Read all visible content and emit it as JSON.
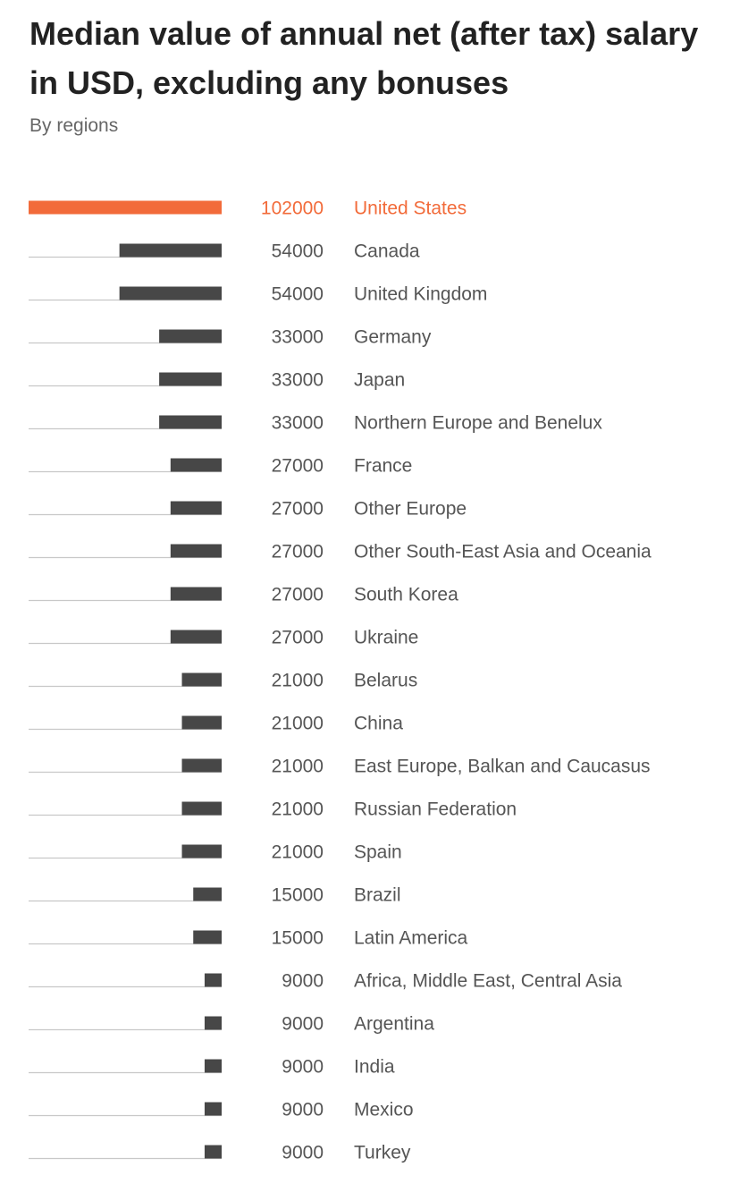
{
  "chart_data": {
    "type": "bar",
    "orientation": "horizontal",
    "title": "Median value of annual net (after tax) salary in USD, excluding any bonuses",
    "subtitle": "By regions",
    "categories": [
      "United States",
      "Canada",
      "United Kingdom",
      "Germany",
      "Japan",
      "Northern Europe and Benelux",
      "France",
      "Other Europe",
      "Other South-East Asia and Oceania",
      "South Korea",
      "Ukraine",
      "Belarus",
      "China",
      "East Europe, Balkan and Caucasus",
      "Russian Federation",
      "Spain",
      "Brazil",
      "Latin America",
      "Africa, Middle East, Central Asia",
      "Argentina",
      "India",
      "Mexico",
      "Turkey"
    ],
    "values": [
      102000,
      54000,
      54000,
      33000,
      33000,
      33000,
      27000,
      27000,
      27000,
      27000,
      27000,
      21000,
      21000,
      21000,
      21000,
      21000,
      15000,
      15000,
      9000,
      9000,
      9000,
      9000,
      9000
    ],
    "highlight_index": 0,
    "xlim": [
      0,
      102000
    ],
    "grid": false,
    "legend": "none",
    "colors": {
      "highlight": "#f26b3a",
      "bar": "#474747",
      "track": "#c8c8c8",
      "text": "#555555",
      "title": "#222222",
      "subtitle": "#666666"
    }
  }
}
